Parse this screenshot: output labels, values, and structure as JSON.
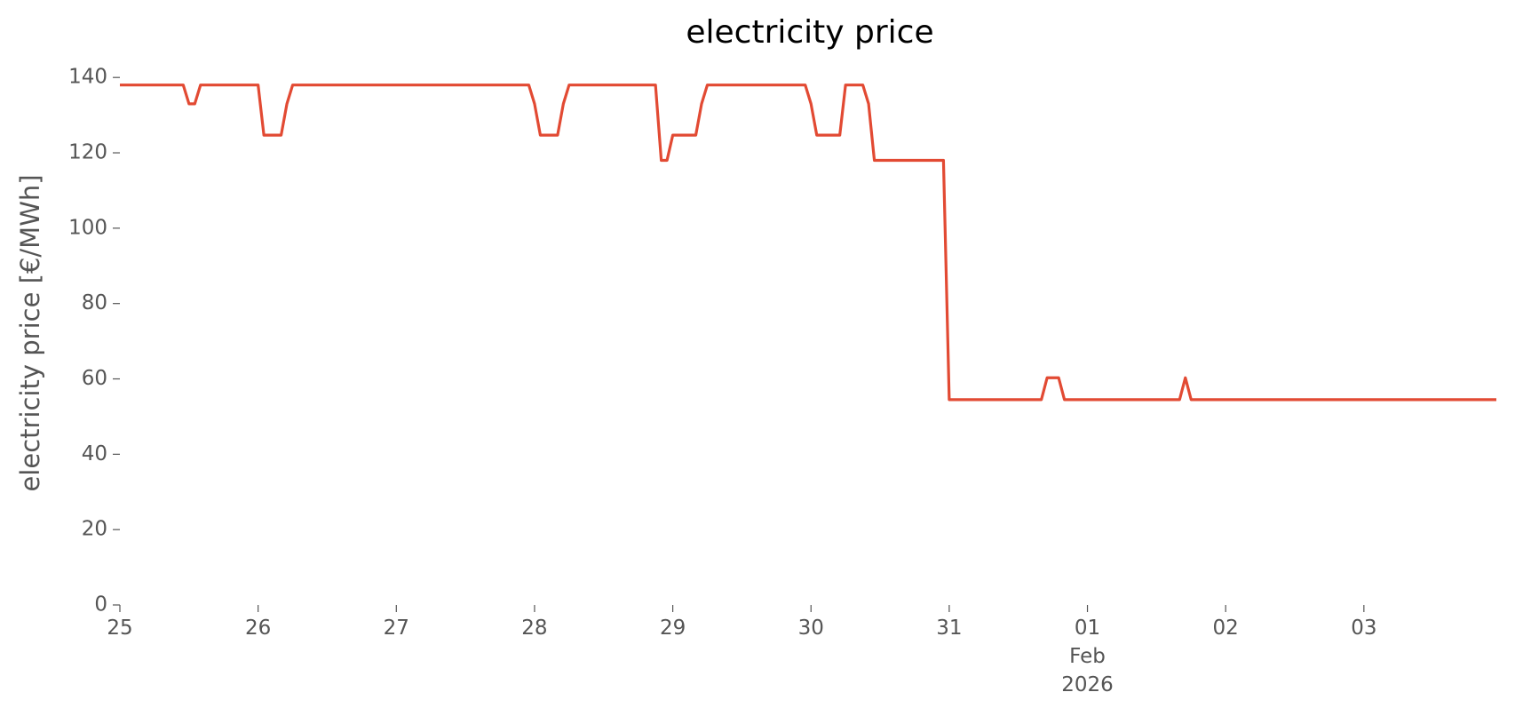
{
  "chart_data": {
    "type": "line",
    "title": "electricity price",
    "ylabel": "electricity price [€/MWh]",
    "x": [
      "2026-01-25T00:00",
      "2026-01-25T11:00",
      "2026-01-25T12:00",
      "2026-01-25T13:00",
      "2026-01-25T14:00",
      "2026-01-26T00:00",
      "2026-01-26T01:00",
      "2026-01-26T04:00",
      "2026-01-26T05:00",
      "2026-01-26T06:00",
      "2026-01-27T23:00",
      "2026-01-28T00:00",
      "2026-01-28T01:00",
      "2026-01-28T04:00",
      "2026-01-28T05:00",
      "2026-01-28T06:00",
      "2026-01-28T21:00",
      "2026-01-28T22:00",
      "2026-01-28T23:00",
      "2026-01-29T00:00",
      "2026-01-29T04:00",
      "2026-01-29T05:00",
      "2026-01-29T06:00",
      "2026-01-29T23:00",
      "2026-01-30T00:00",
      "2026-01-30T01:00",
      "2026-01-30T05:00",
      "2026-01-30T06:00",
      "2026-01-30T09:00",
      "2026-01-30T10:00",
      "2026-01-30T11:00",
      "2026-01-30T23:00",
      "2026-01-31T00:00",
      "2026-01-31T16:00",
      "2026-01-31T17:00",
      "2026-01-31T19:00",
      "2026-01-31T20:00",
      "2026-02-01T16:00",
      "2026-02-01T17:00",
      "2026-02-01T18:00",
      "2026-02-03T23:00"
    ],
    "series": [
      {
        "name": "electricity price",
        "color": "#E24A33",
        "values": [
          138,
          138,
          133,
          133,
          138,
          138,
          124.7,
          124.7,
          133,
          138,
          138,
          133,
          124.7,
          124.7,
          133,
          138,
          138,
          118,
          118,
          124.7,
          124.7,
          133,
          138,
          138,
          133,
          124.7,
          124.7,
          138,
          138,
          133,
          118,
          118,
          54.5,
          54.5,
          60.3,
          60.3,
          54.5,
          54.5,
          60.3,
          54.5,
          54.5
        ]
      }
    ],
    "xlim": [
      "2026-01-25T00:00",
      "2026-02-03T23:00"
    ],
    "xticks": [
      {
        "value": "2026-01-25T00:00",
        "label": "25"
      },
      {
        "value": "2026-01-26T00:00",
        "label": "26"
      },
      {
        "value": "2026-01-27T00:00",
        "label": "27"
      },
      {
        "value": "2026-01-28T00:00",
        "label": "28"
      },
      {
        "value": "2026-01-29T00:00",
        "label": "29"
      },
      {
        "value": "2026-01-30T00:00",
        "label": "30"
      },
      {
        "value": "2026-01-31T00:00",
        "label": "31"
      },
      {
        "value": "2026-02-01T00:00",
        "label": "01\nFeb\n2026"
      },
      {
        "value": "2026-02-02T00:00",
        "label": "02"
      },
      {
        "value": "2026-02-03T00:00",
        "label": "03"
      }
    ],
    "ylim": [
      0,
      145
    ],
    "yticks": [
      0,
      20,
      40,
      60,
      80,
      100,
      120,
      140
    ]
  }
}
